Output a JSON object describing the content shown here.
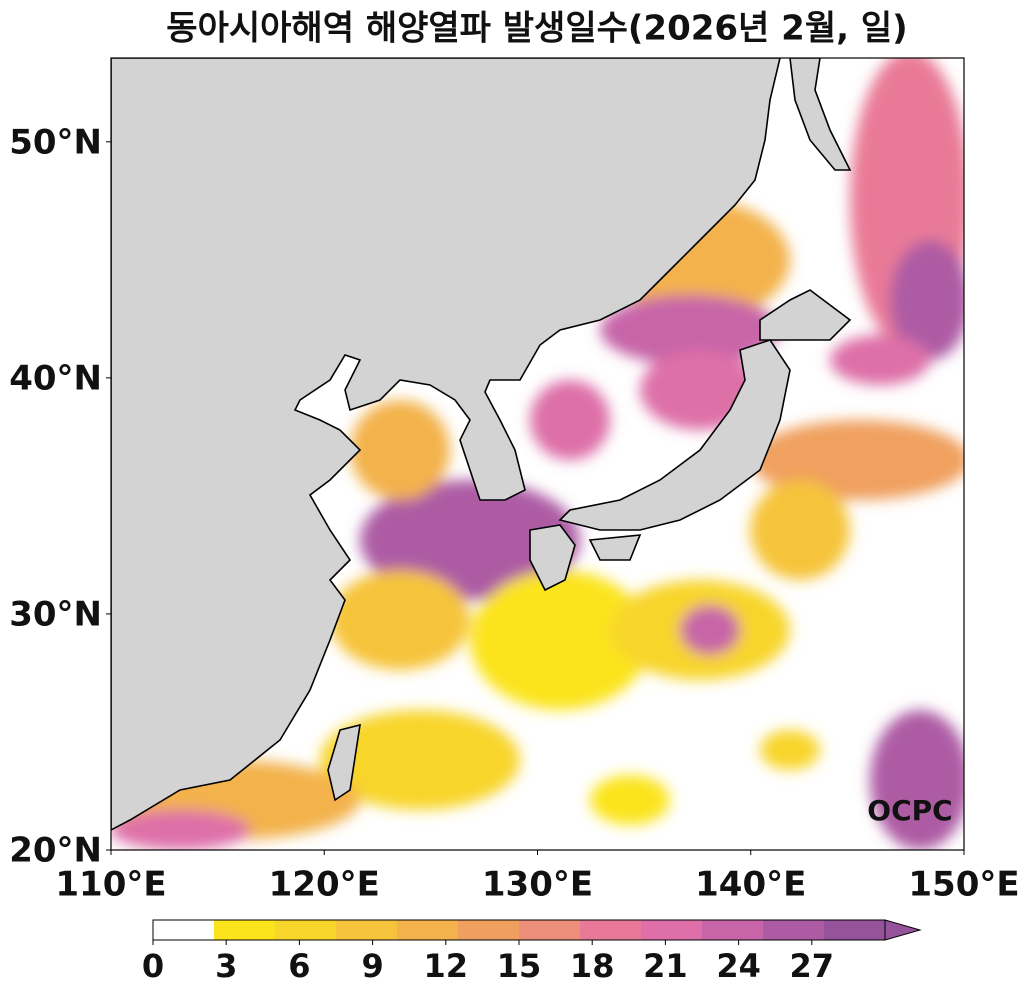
{
  "map": {
    "title": "동아시아해역 해양열파 발생일수(2026년 2월, 일)",
    "xlim": [
      110,
      150
    ],
    "ylim": [
      20,
      53.55
    ],
    "xticks": [
      {
        "value": 110,
        "label": "110°E"
      },
      {
        "value": 120,
        "label": "120°E"
      },
      {
        "value": 130,
        "label": "130°E"
      },
      {
        "value": 140,
        "label": "140°E"
      },
      {
        "value": 150,
        "label": "150°E"
      }
    ],
    "yticks": [
      {
        "value": 20,
        "label": "20°N"
      },
      {
        "value": 30,
        "label": "30°N"
      },
      {
        "value": 40,
        "label": "40°N"
      },
      {
        "value": 50,
        "label": "50°N"
      }
    ],
    "colorbar": {
      "range": [
        0,
        30
      ],
      "ticks": [
        0,
        3,
        6,
        9,
        12,
        15,
        18,
        21,
        24,
        27
      ],
      "colors": [
        "#ffffff",
        "#fbe41c",
        "#f8d52a",
        "#f6c43a",
        "#f3b24c",
        "#f0a05e",
        "#ec8e7a",
        "#e97a97",
        "#de6fa8",
        "#c765a8",
        "#ad5ca4",
        "#94539b"
      ]
    },
    "watermark": "OCPC"
  }
}
